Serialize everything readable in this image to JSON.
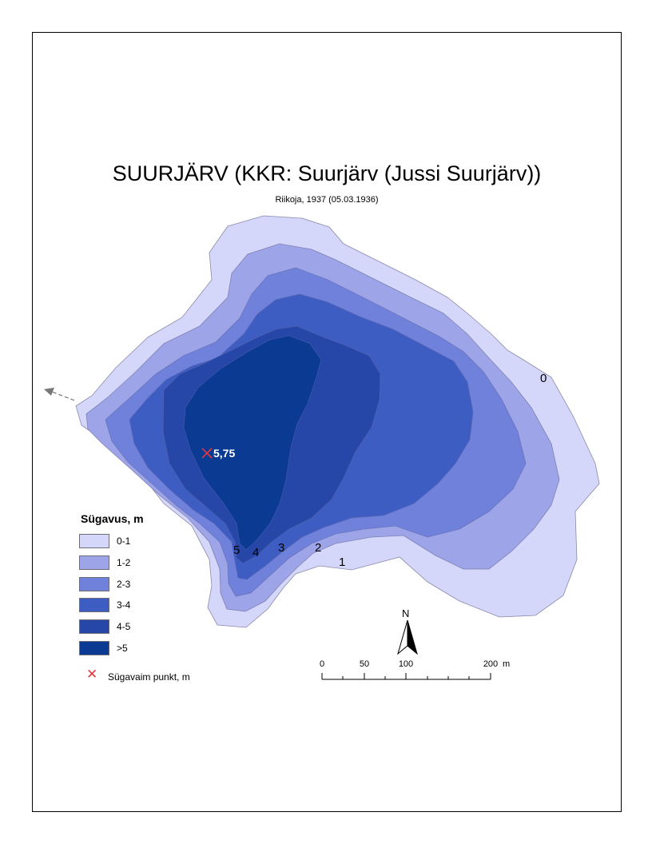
{
  "map": {
    "title": "SUURJÄRV (KKR: Suurjärv (Jussi Suurjärv))",
    "subtitle": "Riikoja, 1937 (05.03.1936)",
    "deepest_label": "5,75",
    "contour_labels": [
      "0",
      "1",
      "2",
      "3",
      "4",
      "5"
    ]
  },
  "legend": {
    "title": "Sügavus, m",
    "classes": [
      {
        "label": "0-1",
        "color": "#d4d6fa"
      },
      {
        "label": "1-2",
        "color": "#9ea4e8"
      },
      {
        "label": "2-3",
        "color": "#6f81da"
      },
      {
        "label": "3-4",
        "color": "#3e5dc2"
      },
      {
        "label": "4-5",
        "color": "#2647a8"
      },
      {
        "label": ">5",
        "color": "#0a3a92"
      }
    ],
    "deepest_point_label": "Sügavaim punkt, m",
    "deepest_point_color": "#e2383f"
  },
  "north_arrow": {
    "label": "N"
  },
  "scale_bar": {
    "ticks": [
      "0",
      "50",
      "100",
      "200"
    ],
    "unit": "m"
  }
}
